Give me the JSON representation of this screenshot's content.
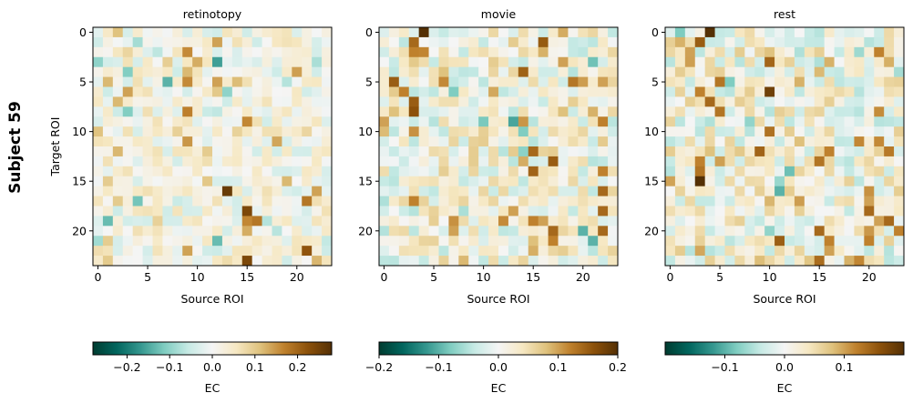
{
  "figure": {
    "row_label": "Subject 59",
    "colormap": "BrBG_r",
    "colormap_stops": [
      "#003c30",
      "#01665e",
      "#35978f",
      "#80cdc1",
      "#c7eae5",
      "#f5f5f5",
      "#f6e8c3",
      "#dfc27d",
      "#bf812d",
      "#8c510a",
      "#543005"
    ]
  },
  "chart_data": [
    {
      "type": "heatmap",
      "title": "retinotopy",
      "xlabel": "Source ROI",
      "ylabel": "Target ROI",
      "n": 24,
      "xticks": [
        0,
        5,
        10,
        15,
        20
      ],
      "yticks": [
        0,
        5,
        10,
        15,
        20
      ],
      "vmin": -0.28,
      "vmax": 0.28,
      "colorbar_ticks": [
        -0.2,
        -0.1,
        0.0,
        0.1,
        0.2
      ],
      "colorbar_label": "EC",
      "seed": 11,
      "peaks": [
        [
          16,
          13,
          0.26
        ],
        [
          18,
          15,
          0.24
        ],
        [
          23,
          15,
          0.24
        ],
        [
          22,
          21,
          0.22
        ],
        [
          21,
          12,
          0.2
        ],
        [
          17,
          21,
          0.18
        ],
        [
          19,
          16,
          0.18
        ],
        [
          2,
          9,
          0.16
        ],
        [
          5,
          9,
          0.16
        ],
        [
          8,
          9,
          0.17
        ],
        [
          11,
          9,
          0.15
        ],
        [
          1,
          12,
          0.14
        ],
        [
          3,
          10,
          0.13
        ],
        [
          22,
          9,
          0.14
        ],
        [
          16,
          22,
          0.14
        ],
        [
          6,
          3,
          0.14
        ],
        [
          5,
          1,
          0.12
        ],
        [
          4,
          9,
          0.12
        ],
        [
          20,
          15,
          0.13
        ],
        [
          7,
          2,
          0.12
        ],
        [
          10,
          0,
          0.11
        ],
        [
          15,
          19,
          0.12
        ],
        [
          3,
          12,
          -0.16
        ],
        [
          5,
          7,
          -0.14
        ],
        [
          19,
          1,
          -0.13
        ],
        [
          21,
          12,
          -0.13
        ],
        [
          17,
          4,
          -0.12
        ],
        [
          4,
          3,
          -0.11
        ],
        [
          8,
          3,
          -0.11
        ],
        [
          3,
          0,
          -0.1
        ],
        [
          6,
          13,
          -0.1
        ]
      ]
    },
    {
      "type": "heatmap",
      "title": "movie",
      "xlabel": "Source ROI",
      "ylabel": "",
      "n": 24,
      "xticks": [
        0,
        5,
        10,
        15,
        20
      ],
      "yticks": [
        0,
        5,
        10,
        15,
        20
      ],
      "vmin": -0.2,
      "vmax": 0.2,
      "colorbar_ticks": [
        -0.2,
        -0.1,
        0.0,
        0.1,
        0.2
      ],
      "colorbar_label": "EC",
      "seed": 23,
      "peaks": [
        [
          0,
          4,
          0.2
        ],
        [
          1,
          3,
          0.14
        ],
        [
          2,
          3,
          0.12
        ],
        [
          5,
          1,
          0.15
        ],
        [
          6,
          2,
          0.12
        ],
        [
          7,
          3,
          0.15
        ],
        [
          12,
          15,
          0.14
        ],
        [
          13,
          17,
          0.15
        ],
        [
          16,
          22,
          0.14
        ],
        [
          18,
          22,
          0.14
        ],
        [
          20,
          17,
          0.14
        ],
        [
          20,
          22,
          0.14
        ],
        [
          19,
          15,
          0.12
        ],
        [
          17,
          3,
          0.12
        ],
        [
          14,
          22,
          0.12
        ],
        [
          19,
          7,
          0.11
        ],
        [
          20,
          7,
          0.1
        ],
        [
          5,
          22,
          0.1
        ],
        [
          10,
          3,
          0.11
        ],
        [
          9,
          0,
          0.1
        ],
        [
          3,
          18,
          0.1
        ],
        [
          19,
          16,
          0.1
        ],
        [
          21,
          17,
          0.12
        ],
        [
          2,
          16,
          0.09
        ],
        [
          8,
          21,
          0.09
        ],
        [
          20,
          20,
          -0.1
        ],
        [
          9,
          13,
          -0.11
        ],
        [
          21,
          21,
          -0.1
        ],
        [
          6,
          7,
          -0.08
        ],
        [
          10,
          14,
          -0.08
        ]
      ]
    },
    {
      "type": "heatmap",
      "title": "rest",
      "xlabel": "Source ROI",
      "ylabel": "",
      "n": 24,
      "xticks": [
        0,
        5,
        10,
        15,
        20
      ],
      "yticks": [
        0,
        5,
        10,
        15,
        20
      ],
      "vmin": -0.2,
      "vmax": 0.2,
      "colorbar_ticks": [
        -0.1,
        0.0,
        0.1
      ],
      "colorbar_label": "EC",
      "seed": 37,
      "peaks": [
        [
          0,
          4,
          0.2
        ],
        [
          1,
          3,
          0.15
        ],
        [
          2,
          2,
          0.1
        ],
        [
          6,
          3,
          0.12
        ],
        [
          7,
          4,
          0.14
        ],
        [
          8,
          5,
          0.13
        ],
        [
          6,
          10,
          0.18
        ],
        [
          15,
          3,
          0.2
        ],
        [
          14,
          3,
          0.13
        ],
        [
          13,
          3,
          0.12
        ],
        [
          12,
          16,
          0.12
        ],
        [
          13,
          15,
          0.13
        ],
        [
          18,
          20,
          0.14
        ],
        [
          19,
          22,
          0.14
        ],
        [
          20,
          23,
          0.12
        ],
        [
          21,
          20,
          0.12
        ],
        [
          20,
          15,
          0.14
        ],
        [
          21,
          16,
          0.12
        ],
        [
          22,
          16,
          0.1
        ],
        [
          16,
          20,
          0.11
        ],
        [
          17,
          20,
          0.1
        ],
        [
          3,
          16,
          0.09
        ],
        [
          5,
          13,
          0.09
        ],
        [
          1,
          1,
          0.09
        ],
        [
          19,
          21,
          0.1
        ],
        [
          16,
          11,
          -0.1
        ],
        [
          14,
          12,
          -0.09
        ],
        [
          5,
          6,
          -0.08
        ],
        [
          9,
          8,
          -0.07
        ],
        [
          20,
          10,
          -0.07
        ]
      ]
    }
  ]
}
